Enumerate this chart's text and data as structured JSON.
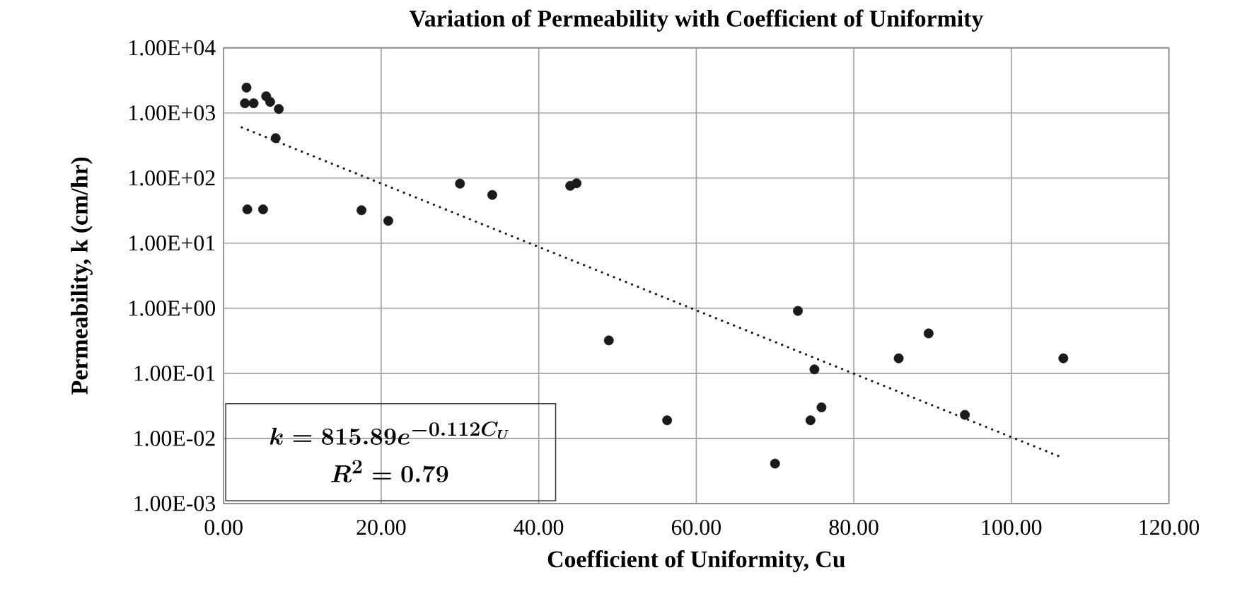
{
  "chart_data": {
    "type": "scatter",
    "title": "Variation of Permeability with Coefficient of Uniformity",
    "xlabel": "Coefficient of Uniformity, Cu",
    "ylabel": "Permeability, k (cm/hr)",
    "log": "y",
    "grid": true,
    "legend": false,
    "xlim": [
      0,
      120
    ],
    "ylim": [
      0.001,
      10000
    ],
    "xticks": [
      {
        "value": 0,
        "label": "0.00"
      },
      {
        "value": 20,
        "label": "20.00"
      },
      {
        "value": 40,
        "label": "40.00"
      },
      {
        "value": 60,
        "label": "60.00"
      },
      {
        "value": 80,
        "label": "80.00"
      },
      {
        "value": 100,
        "label": "100.00"
      },
      {
        "value": 120,
        "label": "120.00"
      }
    ],
    "yticks": [
      {
        "value": 0.001,
        "label": "1.00E-03"
      },
      {
        "value": 0.01,
        "label": "1.00E-02"
      },
      {
        "value": 0.1,
        "label": "1.00E-01"
      },
      {
        "value": 1,
        "label": "1.00E+00"
      },
      {
        "value": 10,
        "label": "1.00E+01"
      },
      {
        "value": 100,
        "label": "1.00E+02"
      },
      {
        "value": 1000,
        "label": "1.00E+03"
      },
      {
        "value": 10000,
        "label": "1.00E+04"
      }
    ],
    "series": [
      {
        "color": "#1a1a1a",
        "marker": "circle",
        "x": [
          2.9,
          2.7,
          3.8,
          5.4,
          5.9,
          7.0,
          6.6,
          3.0,
          5.0,
          17.5,
          20.9,
          30.0,
          34.1,
          44.0,
          44.8,
          48.9,
          56.3,
          72.9,
          75.0,
          75.9,
          74.5,
          70.0,
          85.7,
          89.5,
          94.1,
          106.6
        ],
        "values": [
          2450,
          1410,
          1410,
          1800,
          1480,
          1150,
          410,
          33,
          33,
          32,
          22,
          82,
          55,
          76,
          83,
          0.32,
          0.019,
          0.91,
          0.115,
          0.03,
          0.019,
          0.0041,
          0.17,
          0.41,
          0.023,
          0.17
        ]
      },
      {
        "type": "line",
        "color": "#1a1a1a",
        "marker": "none",
        "line_style": "dotted",
        "x": [
          2.3,
          106.6
        ],
        "values": [
          600,
          0.005
        ]
      }
    ],
    "annotations": [
      "k = 815.89e^{-0.112C_U}",
      "R^2 = 0.79"
    ]
  }
}
